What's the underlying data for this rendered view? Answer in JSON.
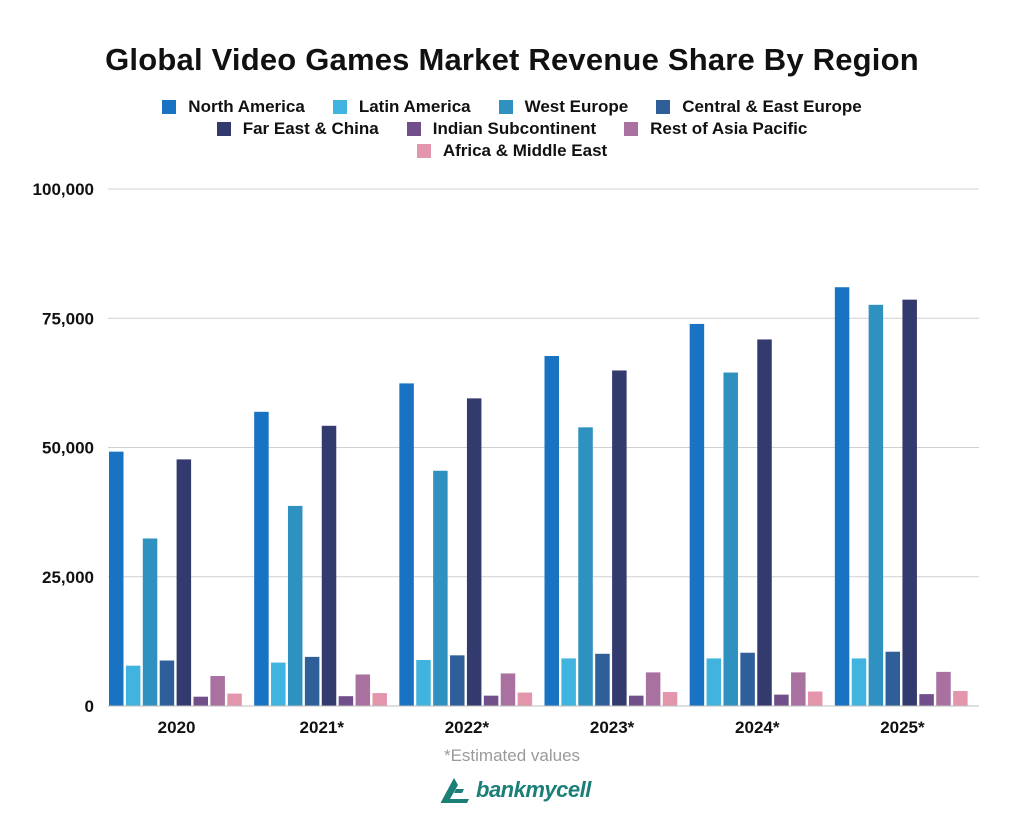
{
  "chart_data": {
    "type": "bar",
    "title": "Global Video Games Market Revenue Share By Region",
    "categories": [
      "2020",
      "2021*",
      "2022*",
      "2023*",
      "2024*",
      "2025*"
    ],
    "yticks": [
      "0",
      "25,000",
      "50,000",
      "75,000",
      "100,000"
    ],
    "ylim": [
      0,
      100000
    ],
    "grid": true,
    "legend_position": "top",
    "series": [
      {
        "name": "North America",
        "color": "#1873c3",
        "values": [
          49200,
          56900,
          62400,
          67700,
          73900,
          81000
        ]
      },
      {
        "name": "Latin America",
        "color": "#40b4df",
        "values": [
          7800,
          8400,
          8900,
          9200,
          9200,
          9200
        ]
      },
      {
        "name": "West Europe",
        "color": "#2e91c0",
        "values": [
          32400,
          38700,
          45500,
          53900,
          64500,
          77600
        ]
      },
      {
        "name": "Central & East Europe",
        "color": "#2f5f98",
        "values": [
          8800,
          9500,
          9800,
          10100,
          10300,
          10500
        ]
      },
      {
        "name": "Far East & China",
        "color": "#333a6e",
        "values": [
          47700,
          54200,
          59500,
          64900,
          70900,
          78600
        ]
      },
      {
        "name": "Indian Subcontinent",
        "color": "#714f8a",
        "values": [
          1800,
          1900,
          2000,
          2000,
          2200,
          2300
        ]
      },
      {
        "name": "Rest of Asia Pacific",
        "color": "#a8719f",
        "values": [
          5800,
          6100,
          6300,
          6500,
          6500,
          6600
        ]
      },
      {
        "name": "Africa & Middle East",
        "color": "#e396ab",
        "values": [
          2400,
          2500,
          2600,
          2700,
          2800,
          2900
        ]
      }
    ]
  },
  "footnote": "*Estimated values",
  "logo": {
    "text": "bankmycell",
    "color": "#1b7f78"
  }
}
